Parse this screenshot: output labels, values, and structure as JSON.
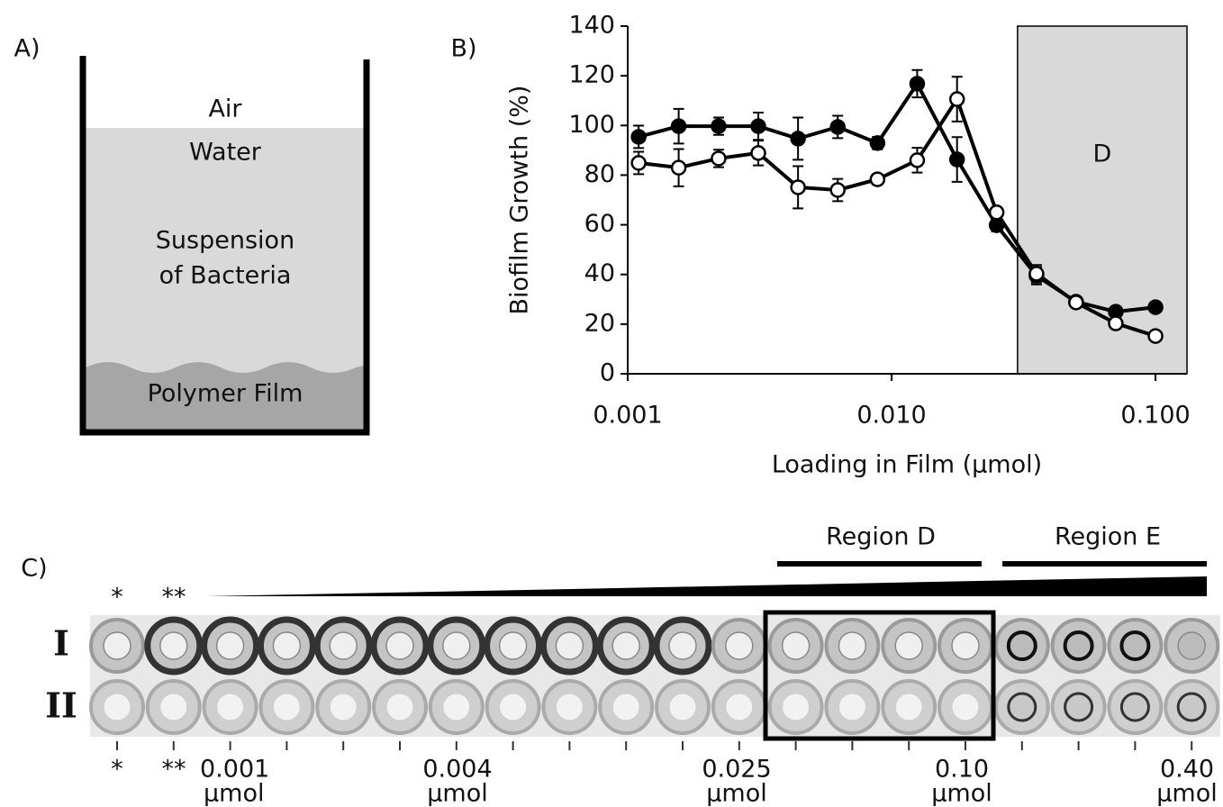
{
  "panel_a": {
    "label": "A)",
    "air": "Air",
    "water": "Water",
    "suspension": [
      "Suspension",
      "of Bacteria"
    ],
    "film": "Polymer Film"
  },
  "chart_data": {
    "type": "line",
    "label": "B)",
    "xlabel": "Loading in Film (µmol)",
    "ylabel": "Biofilm Growth (%)",
    "xscale": "log",
    "x": [
      0.0011,
      0.00156,
      0.00221,
      0.003125,
      0.00442,
      0.00625,
      0.00884,
      0.0125,
      0.0177,
      0.025,
      0.0354,
      0.05,
      0.0707,
      0.1
    ],
    "series": [
      {
        "color": "#000000",
        "marker_fill": "#000000",
        "values": [
          95.4,
          99.7,
          99.7,
          99.7,
          94.7,
          99.4,
          92.9,
          116.8,
          86.3,
          59.8,
          39.5,
          29,
          25,
          26.8
        ],
        "errors": [
          4.5,
          7,
          3.5,
          5.5,
          8.5,
          4.5,
          2.5,
          5.5,
          9,
          2.5,
          3.5,
          2,
          1.5,
          1.5
        ]
      },
      {
        "color": "#000000",
        "marker_fill": "#ffffff",
        "values": [
          84.9,
          83,
          86.7,
          88.9,
          75.1,
          74,
          78.3,
          86,
          110.6,
          65,
          40.3,
          28.7,
          20.3,
          15.2
        ],
        "errors": [
          4.5,
          7.5,
          3.5,
          5,
          8.5,
          4.5,
          2,
          5,
          9,
          2,
          3.5,
          2,
          1.5,
          1.5
        ]
      }
    ],
    "xlim": [
      0.001,
      0.1316
    ],
    "xticks": [
      {
        "value": 0.001,
        "label": "0.001"
      },
      {
        "value": 0.01,
        "label": "0.010"
      },
      {
        "value": 0.1,
        "label": "0.100"
      }
    ],
    "ylim": [
      0,
      140
    ],
    "yticks": [
      0,
      20,
      40,
      60,
      80,
      100,
      120,
      140
    ],
    "shaded_region": {
      "from": 0.03,
      "label": "D",
      "color": "#d9d9d9"
    }
  },
  "panel_c": {
    "label": "C)",
    "region_d": "Region D",
    "region_e": "Region E",
    "rows": [
      "I",
      "II"
    ],
    "top_marks": [
      "*",
      "**"
    ],
    "bottom_marks": [
      "*",
      "**"
    ],
    "loadings": [
      {
        "amount": "0.001",
        "unit": "µmol"
      },
      {
        "amount": "0.004",
        "unit": "µmol"
      },
      {
        "amount": "0.025",
        "unit": "µmol"
      },
      {
        "amount": "0.10",
        "unit": "µmol"
      },
      {
        "amount": "0.40",
        "unit": "µmol"
      }
    ]
  }
}
